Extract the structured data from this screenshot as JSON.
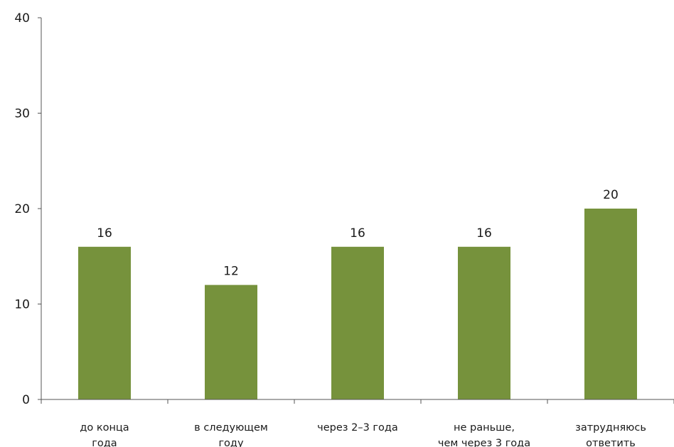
{
  "chart_data": {
    "type": "bar",
    "categories": [
      [
        "до конца",
        "года"
      ],
      [
        "в следующем",
        "году"
      ],
      [
        "через 2–3 года"
      ],
      [
        "не раньше,",
        "чем через 3 года"
      ],
      [
        "затрудняюсь",
        "ответить"
      ]
    ],
    "values": [
      16,
      12,
      16,
      16,
      20
    ],
    "data_labels": [
      "16",
      "12",
      "16",
      "16",
      "20"
    ],
    "ylim": [
      0,
      40
    ],
    "yticks": [
      0,
      10,
      20,
      30,
      40
    ],
    "title": "",
    "xlabel": "",
    "ylabel": "",
    "grid": false,
    "colors": {
      "bar": "#76923c",
      "axis": "#555555"
    }
  }
}
